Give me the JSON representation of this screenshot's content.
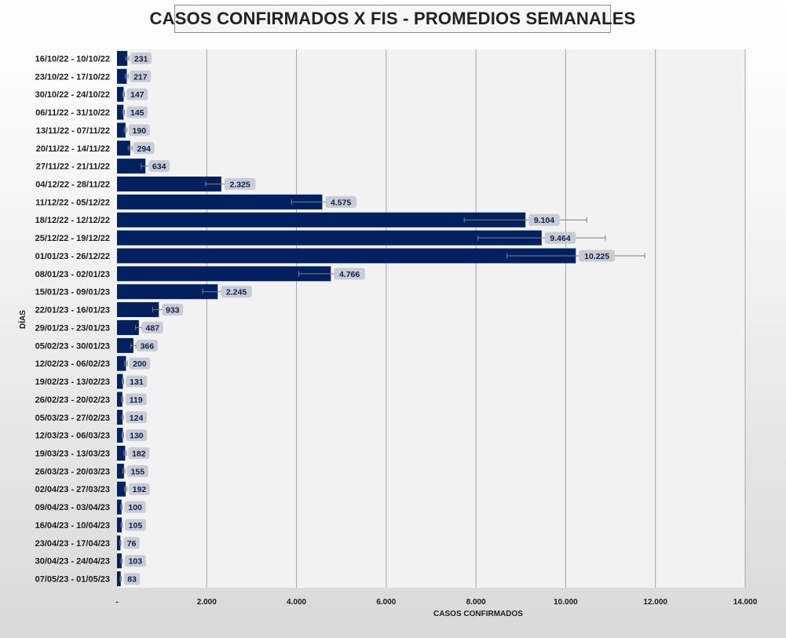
{
  "chart_data": {
    "type": "bar",
    "orientation": "horizontal",
    "title": "CASOS CONFIRMADOS X FIS - PROMEDIOS SEMANALES",
    "xlabel": "CASOS CONFIRMADOS",
    "ylabel": "DÍAS",
    "xlim": [
      0,
      14000
    ],
    "x_ticks": [
      0,
      2000,
      4000,
      6000,
      8000,
      10000,
      12000,
      14000
    ],
    "x_tick_labels": [
      "-",
      "2.000",
      "4.000",
      "6.000",
      "8.000",
      "10.000",
      "12.000",
      "14.000"
    ],
    "grid": "vertical",
    "legend": "none",
    "bar_color": "#002060",
    "categories": [
      "16/10/22 - 10/10/22",
      "23/10/22 - 17/10/22",
      "30/10/22 - 24/10/22",
      "06/11/22 - 31/10/22",
      "13/11/22 - 07/11/22",
      "20/11/22 - 14/11/22",
      "27/11/22 - 21/11/22",
      "04/12/22 - 28/11/22",
      "11/12/22 - 05/12/22",
      "18/12/22 - 12/12/22",
      "25/12/22 - 19/12/22",
      "01/01/23 - 26/12/22",
      "08/01/23 - 02/01/23",
      "15/01/23 - 09/01/23",
      "22/01/23 - 16/01/23",
      "29/01/23 - 23/01/23",
      "05/02/23 - 30/01/23",
      "12/02/23 - 06/02/23",
      "19/02/23 - 13/02/23",
      "26/02/23 - 20/02/23",
      "05/03/23 - 27/02/23",
      "12/03/23 - 06/03/23",
      "19/03/23 - 13/03/23",
      "26/03/23 - 20/03/23",
      "02/04/23 - 27/03/23",
      "09/04/23 - 03/04/23",
      "16/04/23 - 10/04/23",
      "23/04/23 - 17/04/23",
      "30/04/23 - 24/04/23",
      "07/05/23 - 01/05/23"
    ],
    "values": [
      231,
      217,
      147,
      145,
      190,
      294,
      634,
      2325,
      4575,
      9104,
      9464,
      10225,
      4766,
      2245,
      933,
      487,
      366,
      200,
      131,
      119,
      124,
      130,
      182,
      155,
      192,
      100,
      105,
      76,
      103,
      83
    ],
    "value_labels": [
      "231",
      "217",
      "147",
      "145",
      "190",
      "294",
      "634",
      "2.325",
      "4.575",
      "9.104",
      "9.464",
      "10.225",
      "4.766",
      "2.245",
      "933",
      "487",
      "366",
      "200",
      "131",
      "119",
      "124",
      "130",
      "182",
      "155",
      "192",
      "100",
      "105",
      "76",
      "103",
      "83"
    ],
    "error_bars": "±15%"
  }
}
